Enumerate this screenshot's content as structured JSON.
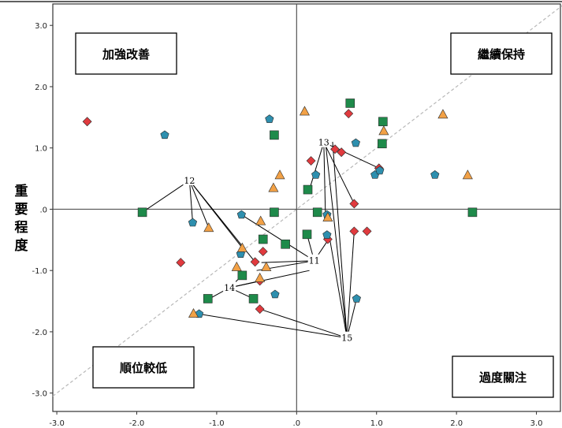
{
  "chart_data": {
    "type": "scatter",
    "title": "",
    "xlabel": "",
    "ylabel": "重要程度",
    "xlim": [
      -3.05,
      3.3
    ],
    "ylim": [
      -3.3,
      3.35
    ],
    "xticks": [
      "-3.0",
      "-2.0",
      "-1.0",
      ".0",
      "1.0",
      "2.0",
      "3.0"
    ],
    "yticks": [
      "3.0",
      "2.0",
      "1.0",
      ".0",
      "-1.0",
      "-2.0",
      "-3.0"
    ],
    "tick_values": [
      -3,
      -2,
      -1,
      0,
      1,
      2,
      3
    ],
    "grid": false,
    "diagonal_reference_line": true,
    "quadrant_labels": {
      "top_left": "加強改善",
      "top_right": "繼續保持",
      "bottom_left": "順位較低",
      "bottom_right": "過度關注"
    },
    "colors": {
      "diamond": "#e03a3e",
      "pentagon": "#2e8fae",
      "triangle": "#f2a146",
      "square": "#1e8a4a",
      "diagonal": "#b8b8b8",
      "frame": "#333333"
    },
    "series": [
      {
        "marker": "diamond",
        "points": [
          [
            -2.62,
            1.43
          ],
          [
            0.65,
            1.56
          ],
          [
            0.48,
            0.98
          ],
          [
            0.56,
            0.93
          ],
          [
            0.18,
            0.79
          ],
          [
            1.03,
            0.67
          ],
          [
            0.72,
            0.09
          ],
          [
            -1.45,
            -0.87
          ],
          [
            -0.52,
            -0.86
          ],
          [
            -0.42,
            -0.69
          ],
          [
            -0.46,
            -1.17
          ],
          [
            -0.46,
            -1.63
          ],
          [
            0.39,
            -0.49
          ],
          [
            0.72,
            -0.36
          ],
          [
            0.88,
            -0.36
          ]
        ]
      },
      {
        "marker": "pentagon",
        "points": [
          [
            -1.65,
            1.21
          ],
          [
            -0.34,
            1.47
          ],
          [
            0.24,
            0.56
          ],
          [
            0.74,
            1.08
          ],
          [
            0.98,
            0.56
          ],
          [
            1.04,
            0.63
          ],
          [
            1.73,
            0.56
          ],
          [
            -0.69,
            -0.09
          ],
          [
            -1.3,
            -0.22
          ],
          [
            -0.7,
            -0.73
          ],
          [
            -0.27,
            -1.39
          ],
          [
            0.38,
            -0.09
          ],
          [
            0.38,
            -0.42
          ],
          [
            0.75,
            -1.46
          ],
          [
            -1.22,
            -1.71
          ]
        ]
      },
      {
        "marker": "triangle",
        "points": [
          [
            0.1,
            1.6
          ],
          [
            1.83,
            1.55
          ],
          [
            1.09,
            1.28
          ],
          [
            -0.21,
            0.56
          ],
          [
            -0.29,
            0.35
          ],
          [
            2.14,
            0.56
          ],
          [
            -1.1,
            -0.3
          ],
          [
            -0.45,
            -0.19
          ],
          [
            0.39,
            -0.13
          ],
          [
            -0.68,
            -0.63
          ],
          [
            -0.38,
            -0.94
          ],
          [
            -0.75,
            -0.94
          ],
          [
            -0.46,
            -1.12
          ],
          [
            -1.29,
            -1.7
          ]
        ]
      },
      {
        "marker": "square",
        "points": [
          [
            0.67,
            1.73
          ],
          [
            1.08,
            1.43
          ],
          [
            -0.28,
            1.21
          ],
          [
            1.07,
            1.07
          ],
          [
            0.14,
            0.32
          ],
          [
            -1.93,
            -0.05
          ],
          [
            -0.28,
            -0.05
          ],
          [
            0.26,
            -0.05
          ],
          [
            2.2,
            -0.05
          ],
          [
            -0.42,
            -0.49
          ],
          [
            0.13,
            -0.41
          ],
          [
            -0.14,
            -0.57
          ],
          [
            -0.68,
            -1.08
          ],
          [
            -0.54,
            -1.46
          ],
          [
            -1.11,
            -1.46
          ]
        ]
      }
    ],
    "annotations": [
      {
        "label": "12",
        "anchor": [
          -1.34,
          0.47
        ],
        "targets": [
          [
            -1.93,
            -0.05
          ],
          [
            -1.3,
            -0.22
          ],
          [
            -1.1,
            -0.3
          ],
          [
            -0.68,
            -0.63
          ],
          [
            -0.52,
            -0.86
          ]
        ]
      },
      {
        "label": "13",
        "anchor": [
          0.34,
          1.09
        ],
        "targets": [
          [
            0.16,
            0.32
          ],
          [
            0.36,
            -0.07
          ],
          [
            0.72,
            0.09
          ],
          [
            1.03,
            0.67
          ]
        ]
      },
      {
        "label": "11",
        "anchor": [
          0.22,
          -0.84
        ],
        "targets": [
          [
            -0.69,
            -0.09
          ],
          [
            -0.5,
            -1.0
          ],
          [
            -0.44,
            -0.87
          ],
          [
            0.4,
            -0.49
          ],
          [
            0.13,
            -0.41
          ]
        ]
      },
      {
        "label": "14",
        "anchor": [
          -0.84,
          -1.28
        ],
        "targets": [
          [
            -1.09,
            -1.46
          ],
          [
            -0.68,
            -1.08
          ],
          [
            -0.54,
            -1.46
          ],
          [
            -0.46,
            -1.17
          ],
          [
            0.16,
            -1.0
          ]
        ]
      },
      {
        "label": "15",
        "anchor": [
          0.63,
          -2.1
        ],
        "targets": [
          [
            0.36,
            1.1
          ],
          [
            0.45,
            1.1
          ],
          [
            0.72,
            -0.36
          ],
          [
            0.75,
            -1.46
          ],
          [
            0.41,
            -0.45
          ],
          [
            -1.22,
            -1.71
          ],
          [
            -0.46,
            -1.63
          ]
        ]
      }
    ]
  }
}
